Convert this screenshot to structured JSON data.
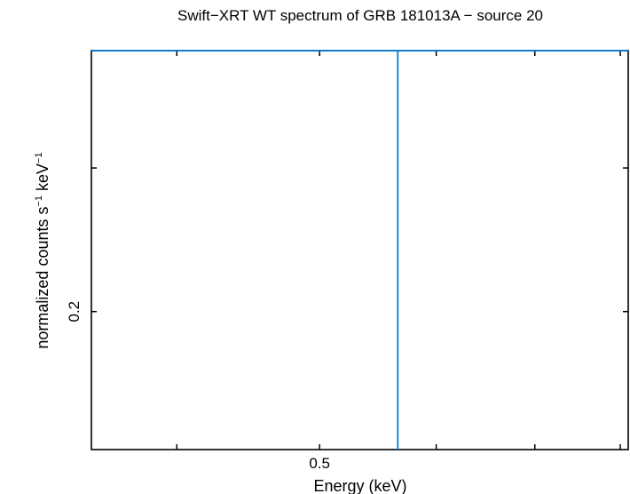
{
  "chart_data": {
    "type": "line",
    "title": "Swift−XRT WT spectrum of GRB 181013A − source 20",
    "xlabel": "Energy (keV)",
    "ylabel": {
      "text": "normalized counts s",
      "sup1": "−1",
      "mid": " keV",
      "sup2": "−1"
    },
    "x_scale": "log",
    "y_scale": "log",
    "xlim": [
      0.35,
      0.81
    ],
    "ylim": [
      0.1614,
      0.3
    ],
    "x_ticks": [
      {
        "value": 0.4,
        "label": ""
      },
      {
        "value": 0.5,
        "label": "0.5"
      },
      {
        "value": 0.6,
        "label": ""
      },
      {
        "value": 0.7,
        "label": ""
      },
      {
        "value": 0.8,
        "label": ""
      }
    ],
    "y_ticks": [
      {
        "value": 0.2,
        "label": "0.2"
      },
      {
        "value": 0.25,
        "label": ""
      },
      {
        "value": 0.3,
        "label": ""
      }
    ],
    "series": [
      {
        "color": "#0a7fd8",
        "points": [
          {
            "x": 0.35,
            "y": 0.3
          },
          {
            "x": 0.565,
            "y": 0.3
          },
          {
            "x": 0.565,
            "y": 0.1614
          },
          {
            "x": 0.565,
            "y": 0.3
          },
          {
            "x": 0.81,
            "y": 0.3
          }
        ]
      }
    ],
    "grid": false,
    "legend": "none",
    "colors": {
      "axis": "#000000",
      "line": "#0a7fd8"
    }
  }
}
